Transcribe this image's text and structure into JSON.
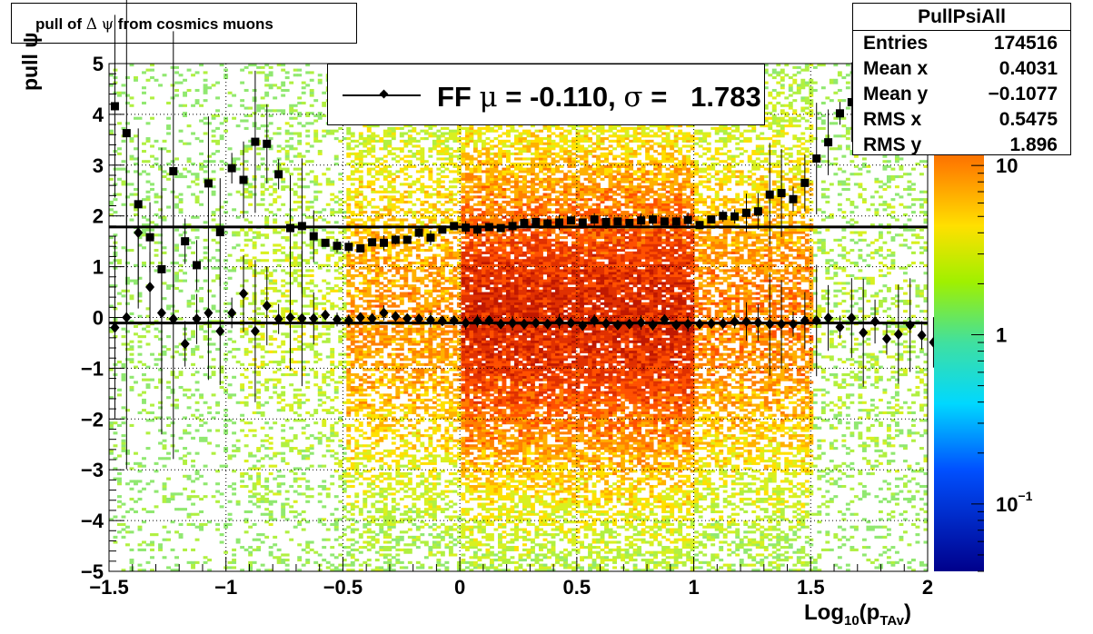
{
  "title": {
    "prefix": "pull of ",
    "delta": "Δ",
    "psi": "ψ",
    "suffix": " from cosmics muons"
  },
  "stats_box": {
    "name": "PullPsiAll",
    "rows": [
      {
        "label": "Entries",
        "value": "174516"
      },
      {
        "label": "Mean x",
        "value": "0.4031"
      },
      {
        "label": "Mean y",
        "value": "−0.1077"
      },
      {
        "label": "RMS x",
        "value": "0.5475"
      },
      {
        "label": "RMS y",
        "value": "1.896"
      }
    ]
  },
  "legend": {
    "ff": "FF ",
    "mu": "μ",
    "mid": " = -0.110, ",
    "sigma": "σ",
    "tail": " =   1.783"
  },
  "axis_labels": {
    "y": "pull ψ",
    "x_main": "Log",
    "x_sub1": "10",
    "x_mid": "(p",
    "x_sub2": "TAv",
    "x_end": ")"
  },
  "colors": {
    "frame": "#000000",
    "zero_line": "#000000"
  },
  "chart_data": {
    "type": "heatmap",
    "x_range": [
      -1.5,
      2
    ],
    "y_range": [
      -5,
      5
    ],
    "x_ticks": [
      "−1.5",
      "−1",
      "−0.5",
      "0",
      "0.5",
      "1",
      "1.5",
      "2"
    ],
    "y_ticks": [
      "−5",
      "−4",
      "−3",
      "−2",
      "−1",
      "0",
      "1",
      "2",
      "3",
      "4",
      "5"
    ],
    "colorbar": {
      "scale": "log",
      "range": [
        0.04,
        40
      ],
      "ticks": [
        {
          "v": 0.1,
          "label": "10",
          "sup": "−1"
        },
        {
          "v": 1,
          "label": "1",
          "sup": ""
        },
        {
          "v": 10,
          "label": "10",
          "sup": ""
        }
      ]
    },
    "grid": true,
    "horizontal_lines": [
      1.783,
      -0.11
    ],
    "series": [
      {
        "marker": "square",
        "points": [
          [
            -1.475,
            4.16
          ],
          [
            -1.425,
            3.63
          ],
          [
            -1.375,
            2.23
          ],
          [
            -1.325,
            1.58
          ],
          [
            -1.275,
            0.95
          ],
          [
            -1.225,
            2.88
          ],
          [
            -1.175,
            1.5
          ],
          [
            -1.125,
            1.03
          ],
          [
            -1.075,
            2.64
          ],
          [
            -1.025,
            1.68
          ],
          [
            -0.975,
            2.94
          ],
          [
            -0.925,
            2.71
          ],
          [
            -0.875,
            3.46
          ],
          [
            -0.825,
            3.42
          ],
          [
            -0.775,
            2.82
          ],
          [
            -0.725,
            1.76
          ],
          [
            -0.675,
            1.8
          ],
          [
            -0.625,
            1.6
          ],
          [
            -0.575,
            1.47
          ],
          [
            -0.525,
            1.41
          ],
          [
            -0.475,
            1.39
          ],
          [
            -0.425,
            1.36
          ],
          [
            -0.375,
            1.48
          ],
          [
            -0.325,
            1.47
          ],
          [
            -0.275,
            1.53
          ],
          [
            -0.225,
            1.53
          ],
          [
            -0.175,
            1.67
          ],
          [
            -0.125,
            1.57
          ],
          [
            -0.075,
            1.73
          ],
          [
            -0.025,
            1.8
          ],
          [
            0.025,
            1.77
          ],
          [
            0.075,
            1.73
          ],
          [
            0.125,
            1.78
          ],
          [
            0.175,
            1.76
          ],
          [
            0.225,
            1.8
          ],
          [
            0.275,
            1.86
          ],
          [
            0.325,
            1.88
          ],
          [
            0.375,
            1.85
          ],
          [
            0.425,
            1.87
          ],
          [
            0.475,
            1.91
          ],
          [
            0.525,
            1.87
          ],
          [
            0.575,
            1.93
          ],
          [
            0.625,
            1.88
          ],
          [
            0.675,
            1.89
          ],
          [
            0.725,
            1.86
          ],
          [
            0.775,
            1.91
          ],
          [
            0.825,
            1.93
          ],
          [
            0.875,
            1.89
          ],
          [
            0.925,
            1.89
          ],
          [
            0.975,
            1.92
          ],
          [
            1.025,
            1.82
          ],
          [
            1.075,
            1.93
          ],
          [
            1.125,
            2.0
          ],
          [
            1.175,
            1.99
          ],
          [
            1.225,
            2.06
          ],
          [
            1.275,
            2.09
          ],
          [
            1.325,
            2.42
          ],
          [
            1.375,
            2.45
          ],
          [
            1.425,
            2.33
          ],
          [
            1.475,
            2.65
          ],
          [
            1.525,
            3.13
          ],
          [
            1.575,
            3.45
          ],
          [
            1.625,
            4.02
          ],
          [
            1.675,
            4.24
          ],
          [
            1.725,
            4.43
          ]
        ]
      },
      {
        "marker": "diamond",
        "points": [
          [
            -1.475,
            -0.2
          ],
          [
            -1.425,
            0.0
          ],
          [
            -1.375,
            1.67
          ],
          [
            -1.325,
            0.6
          ],
          [
            -1.275,
            0.09
          ],
          [
            -1.225,
            -0.03
          ],
          [
            -1.175,
            -0.52
          ],
          [
            -1.125,
            -0.03
          ],
          [
            -1.075,
            0.09
          ],
          [
            -1.025,
            -0.27
          ],
          [
            -0.975,
            0.09
          ],
          [
            -0.925,
            0.47
          ],
          [
            -0.875,
            -0.27
          ],
          [
            -0.825,
            0.23
          ],
          [
            -0.775,
            -0.03
          ],
          [
            -0.725,
            0.0
          ],
          [
            -0.675,
            -0.02
          ],
          [
            -0.625,
            -0.02
          ],
          [
            -0.575,
            0.05
          ],
          [
            -0.525,
            -0.04
          ],
          [
            -0.475,
            -0.06
          ],
          [
            -0.425,
            0.0
          ],
          [
            -0.375,
            -0.02
          ],
          [
            -0.325,
            0.09
          ],
          [
            -0.275,
            0.02
          ],
          [
            -0.225,
            -0.02
          ],
          [
            -0.175,
            -0.03
          ],
          [
            -0.125,
            -0.05
          ],
          [
            -0.075,
            -0.07
          ],
          [
            -0.025,
            -0.06
          ],
          [
            0.025,
            -0.11
          ],
          [
            0.075,
            -0.07
          ],
          [
            0.125,
            -0.06
          ],
          [
            0.175,
            -0.13
          ],
          [
            0.225,
            -0.11
          ],
          [
            0.275,
            -0.13
          ],
          [
            0.325,
            -0.11
          ],
          [
            0.375,
            -0.13
          ],
          [
            0.425,
            -0.08
          ],
          [
            0.475,
            -0.11
          ],
          [
            0.525,
            -0.16
          ],
          [
            0.575,
            -0.06
          ],
          [
            0.625,
            -0.12
          ],
          [
            0.675,
            -0.15
          ],
          [
            0.725,
            -0.13
          ],
          [
            0.775,
            -0.1
          ],
          [
            0.825,
            -0.15
          ],
          [
            0.875,
            -0.04
          ],
          [
            0.925,
            -0.15
          ],
          [
            0.975,
            -0.13
          ],
          [
            1.025,
            -0.13
          ],
          [
            1.075,
            -0.12
          ],
          [
            1.125,
            -0.12
          ],
          [
            1.175,
            -0.08
          ],
          [
            1.225,
            -0.08
          ],
          [
            1.275,
            -0.1
          ],
          [
            1.325,
            -0.13
          ],
          [
            1.375,
            -0.13
          ],
          [
            1.425,
            -0.13
          ],
          [
            1.475,
            -0.06
          ],
          [
            1.525,
            -0.06
          ],
          [
            1.575,
            -0.01
          ],
          [
            1.625,
            -0.19
          ],
          [
            1.675,
            -0.01
          ],
          [
            1.725,
            -0.3
          ],
          [
            1.775,
            -0.08
          ],
          [
            1.825,
            -0.42
          ],
          [
            1.875,
            -0.33
          ],
          [
            1.925,
            -0.15
          ],
          [
            1.975,
            -0.35
          ],
          [
            2.025,
            -0.49
          ]
        ]
      }
    ]
  }
}
